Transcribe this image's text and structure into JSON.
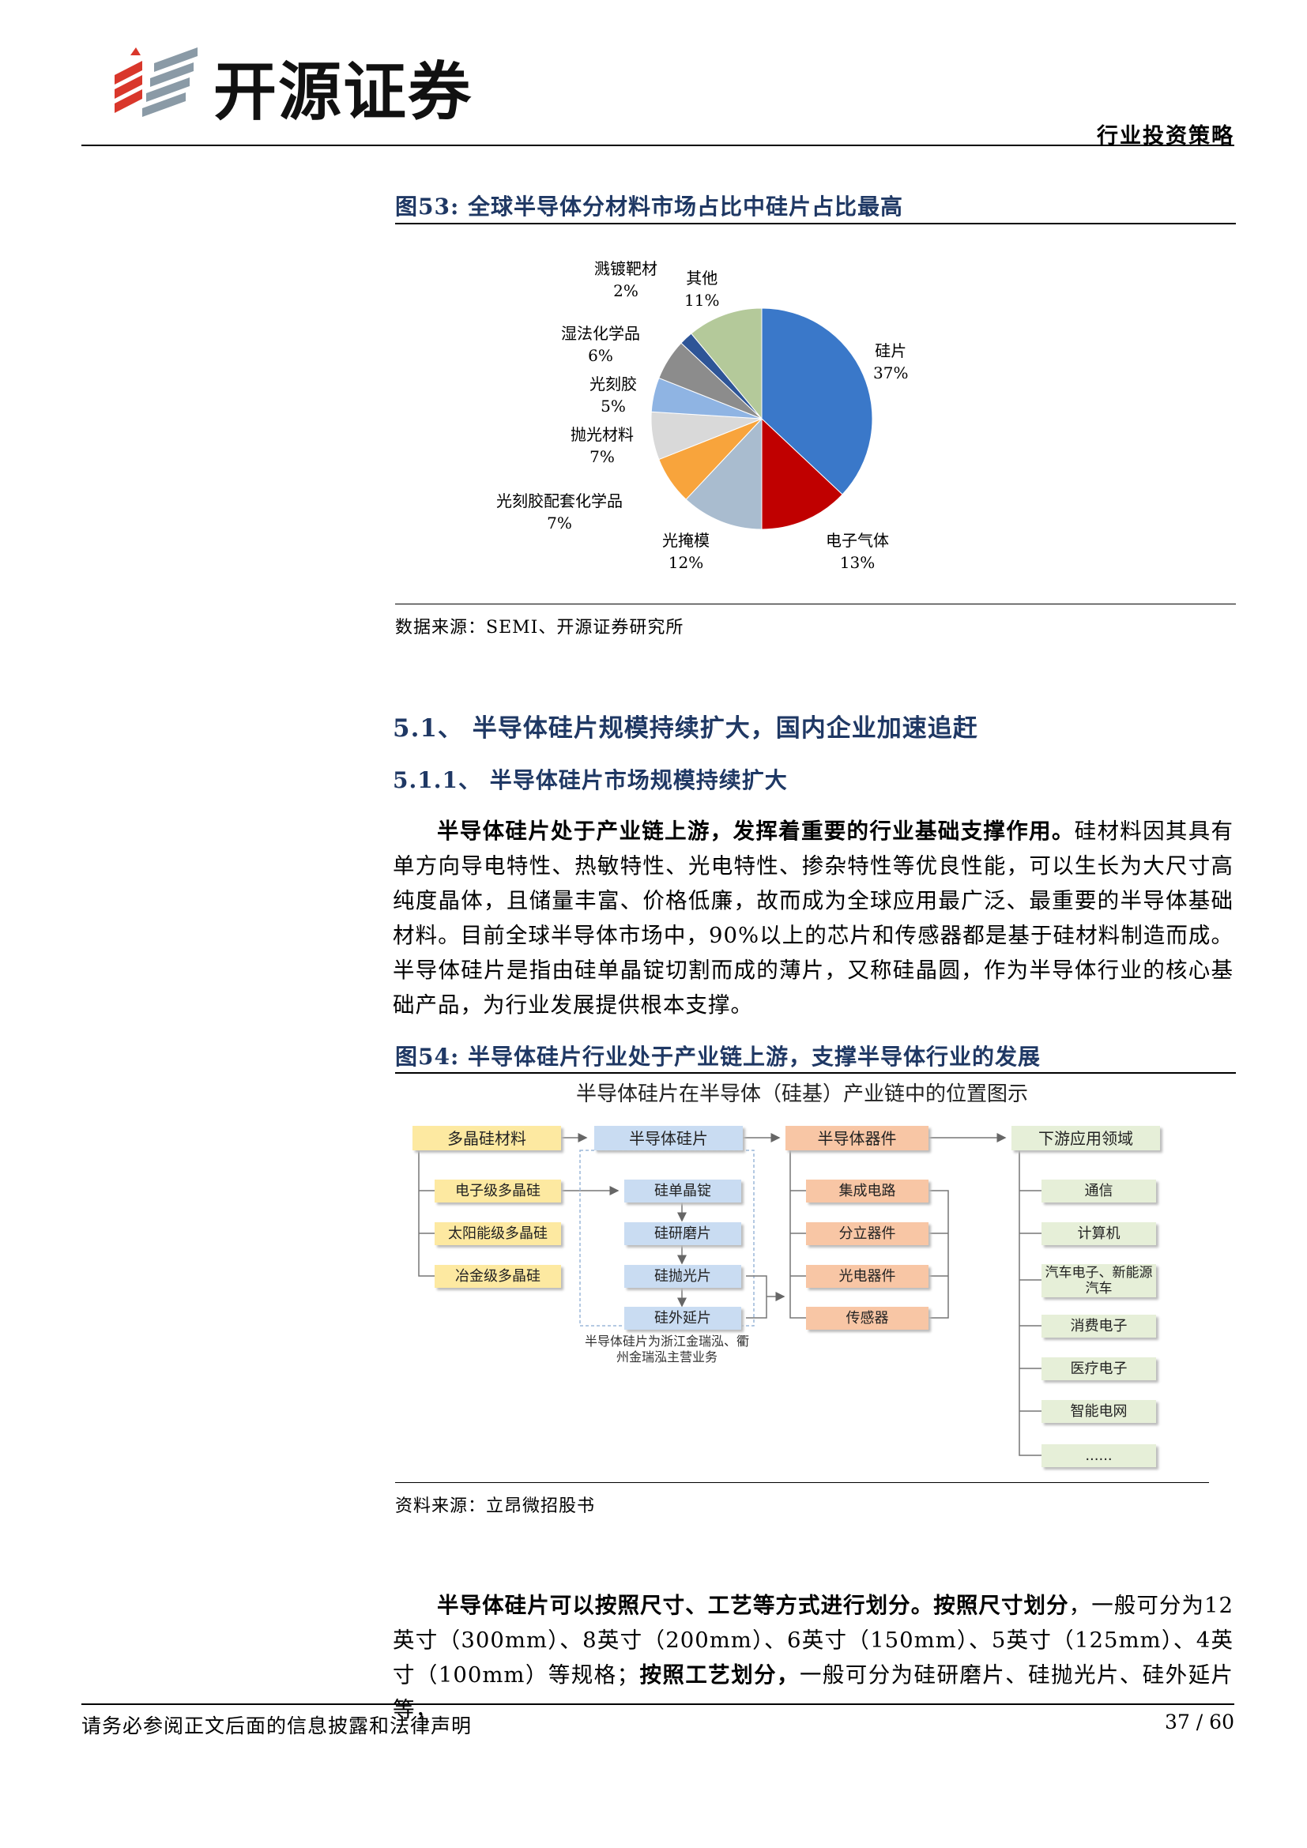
{
  "header": {
    "company": "开源证券",
    "report_type": "行业投资策略"
  },
  "figure53": {
    "title": "图53:  全球半导体分材料市场占比中硅片占比最高",
    "source": "数据来源：SEMI、开源证券研究所"
  },
  "chart_data": {
    "type": "pie",
    "title": "",
    "slices": [
      {
        "label": "硅片",
        "pct": "37%",
        "value": 37,
        "color": "#3a78c9"
      },
      {
        "label": "电子气体",
        "pct": "13%",
        "value": 13,
        "color": "#c00000"
      },
      {
        "label": "光掩模",
        "pct": "12%",
        "value": 12,
        "color": "#a9bccf"
      },
      {
        "label": "光刻胶配套化学品",
        "pct": "7%",
        "value": 7,
        "color": "#f8a43c"
      },
      {
        "label": "抛光材料",
        "pct": "7%",
        "value": 7,
        "color": "#d9d9d9"
      },
      {
        "label": "光刻胶",
        "pct": "5%",
        "value": 5,
        "color": "#8fb4e3"
      },
      {
        "label": "湿法化学品",
        "pct": "6%",
        "value": 6,
        "color": "#8c8c8c"
      },
      {
        "label": "溅镀靶材",
        "pct": "2%",
        "value": 2,
        "color": "#2e5597"
      },
      {
        "label": "其他",
        "pct": "11%",
        "value": 11,
        "color": "#b4c99a"
      }
    ]
  },
  "section": {
    "h1": "5.1、  半导体硅片规模持续扩大，国内企业加速追赶",
    "h2": "5.1.1、  半导体硅片市场规模持续扩大"
  },
  "para1": {
    "lead": "半导体硅片处于产业链上游，发挥着重要的行业基础支撑作用。",
    "body": "硅材料因其具有单方向导电特性、热敏特性、光电特性、掺杂特性等优良性能，可以生长为大尺寸高纯度晶体，且储量丰富、价格低廉，故而成为全球应用最广泛、最重要的半导体基础材料。目前全球半导体市场中，90%以上的芯片和传感器都是基于硅材料制造而成。半导体硅片是指由硅单晶锭切割而成的薄片，又称硅晶圆，作为半导体行业的核心基础产品，为行业发展提供根本支撑。"
  },
  "figure54": {
    "title": "图54:  半导体硅片行业处于产业链上游，支撑半导体行业的发展",
    "source": "资料来源：立昂微招股书",
    "diagram_title": "半导体硅片在半导体（硅基）产业链中的位置图示",
    "col1_head": "多晶硅材料",
    "col1_items": [
      "电子级多晶硅",
      "太阳能级多晶硅",
      "冶金级多晶硅"
    ],
    "col2_head": "半导体硅片",
    "col2_items": [
      "硅单晶锭",
      "硅研磨片",
      "硅抛光片",
      "硅外延片"
    ],
    "col2_note": "半导体硅片为浙江金瑞泓、衢州金瑞泓主营业务",
    "col3_head": "半导体器件",
    "col3_items": [
      "集成电路",
      "分立器件",
      "光电器件",
      "传感器"
    ],
    "col4_head": "下游应用领域",
    "col4_items": [
      "通信",
      "计算机",
      "汽车电子、新能源汽车",
      "消费电子",
      "医疗电子",
      "智能电网",
      "......"
    ]
  },
  "para2": {
    "lead1": "半导体硅片可以按照尺寸、工艺等方式进行划分。按照尺寸划分",
    "text1": "，一般可分为12英寸（300mm）、8英寸（200mm）、6英寸（150mm）、5英寸（125mm）、4英寸（100mm）等规格；",
    "lead2": "按照工艺划分，",
    "text2": "一般可分为硅研磨片、硅抛光片、硅外延片等，"
  },
  "footer": {
    "disclaimer": "请务必参阅正文后面的信息披露和法律声明",
    "page": "37 / 60"
  }
}
